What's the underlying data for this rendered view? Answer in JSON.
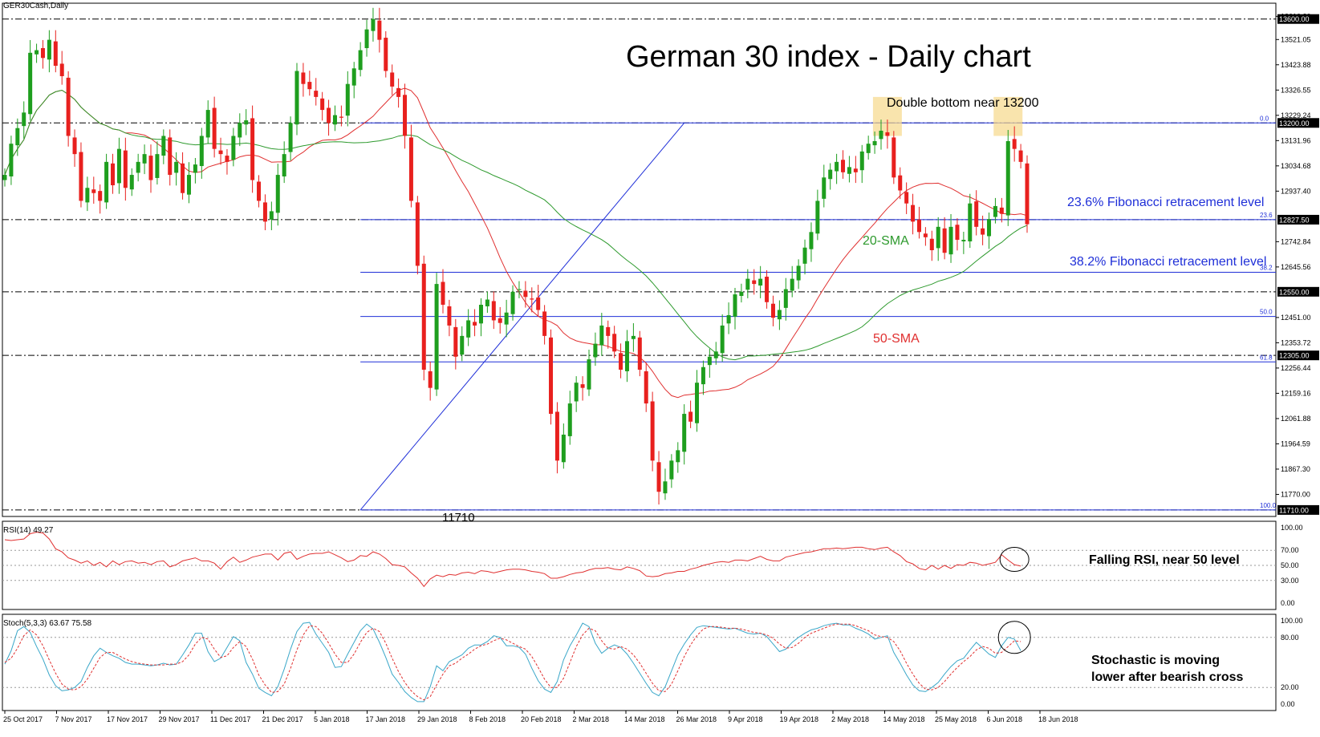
{
  "symbol_label": "GER30Cash,Daily",
  "title": "German 30 index - Daily chart",
  "annotations": {
    "double_bottom": "Double bottom near 13200",
    "fib_236": "23.6% Fibonacci retracement level",
    "fib_382": "38.2% Fibonacci retracement level",
    "sma20": "20-SMA",
    "sma50": "50-SMA",
    "low": "11710",
    "rsi_note": "Falling RSI, near 50 level",
    "stoch_note_line1": "Stochastic is moving",
    "stoch_note_line2": "lower after bearish cross"
  },
  "rsi_title": "RSI(14) 49.27",
  "stoch_title": "Stoch(5,3,3) 63.67 75.58",
  "colors": {
    "bull": "#1e9e1e",
    "bear": "#e8201e",
    "fib": "#1f2fd8",
    "sma20": "#2e9a2e",
    "sma50": "#e03030",
    "stoch_main": "#3aa7c9",
    "stoch_signal": "#e03030",
    "rsi": "#e03030",
    "highlight": "#f6d98a"
  },
  "chart_data": [
    {
      "type": "candlestick",
      "name": "GER30Cash,Daily",
      "x_ticks": [
        "25 Oct 2017",
        "7 Nov 2017",
        "17 Nov 2017",
        "29 Nov 2017",
        "11 Dec 2017",
        "21 Dec 2017",
        "5 Jan 2018",
        "17 Jan 2018",
        "29 Jan 2018",
        "8 Feb 2018",
        "20 Feb 2018",
        "2 Mar 2018",
        "14 Mar 2018",
        "26 Mar 2018",
        "9 Apr 2018",
        "19 Apr 2018",
        "2 May 2018",
        "14 May 2018",
        "25 May 2018",
        "6 Jun 2018",
        "18 Jun 2018"
      ],
      "y_ticks": [
        "13610.30",
        "13521.05",
        "13423.88",
        "13326.55",
        "13229.24",
        "13131.96",
        "13034.68",
        "12937.40",
        "12742.84",
        "12645.56",
        "12451.00",
        "12353.72",
        "12256.44",
        "12159.16",
        "12061.88",
        "11964.59",
        "11867.30",
        "11770.00"
      ],
      "ylim": [
        11685,
        13630
      ],
      "levels": [
        {
          "label": "13600.00",
          "value": 13600
        },
        {
          "label": "13200.00",
          "value": 13200
        },
        {
          "label": "12827.50",
          "value": 12827.5
        },
        {
          "label": "12550.00",
          "value": 12550
        },
        {
          "label": "12305.00",
          "value": 12305
        },
        {
          "label": "11710.00",
          "value": 11710
        }
      ],
      "fibonacci": [
        {
          "label": "0.0",
          "value": 13200
        },
        {
          "label": "23.6",
          "value": 12827.5
        },
        {
          "label": "38.2",
          "value": 12625
        },
        {
          "label": "50.0",
          "value": 12455
        },
        {
          "label": "61.8",
          "value": 12280
        },
        {
          "label": "100.0",
          "value": 11710
        }
      ],
      "close": [
        13000,
        13120,
        13180,
        13240,
        13470,
        13480,
        13450,
        13520,
        13420,
        13380,
        13150,
        13080,
        12900,
        12950,
        12930,
        12900,
        13050,
        12960,
        13100,
        12950,
        13000,
        13050,
        13080,
        12980,
        13080,
        13150,
        13000,
        13050,
        12930,
        13000,
        13040,
        13150,
        13250,
        13100,
        13080,
        13050,
        13150,
        13200,
        13210,
        12980,
        12900,
        12820,
        12860,
        13000,
        13080,
        13200,
        13400,
        13350,
        13330,
        13300,
        13250,
        13200,
        13230,
        13220,
        13350,
        13410,
        13480,
        13560,
        13600,
        13520,
        13400,
        13340,
        13300,
        13150,
        12900,
        12650,
        12250,
        12180,
        12580,
        12500,
        12420,
        12300,
        12380,
        12440,
        12420,
        12500,
        12520,
        12440,
        12430,
        12470,
        12550,
        12560,
        12530,
        12520,
        12480,
        12380,
        12080,
        11900,
        12000,
        12120,
        12200,
        12180,
        12290,
        12350,
        12420,
        12380,
        12320,
        12250,
        12360,
        12380,
        12250,
        12120,
        11900,
        11780,
        11820,
        11900,
        11940,
        12080,
        12050,
        12200,
        12260,
        12300,
        12320,
        12420,
        12460,
        12540,
        12550,
        12600,
        12580,
        12600,
        12510,
        12450,
        12480,
        12560,
        12600,
        12650,
        12720,
        12780,
        12900,
        12990,
        13020,
        13050,
        13010,
        13030,
        13010,
        13090,
        13120,
        13130,
        13170,
        13150,
        12990,
        12940,
        12890,
        12820,
        12780,
        12760,
        12710,
        12800,
        12700,
        12800,
        12750,
        12750,
        12890,
        12800,
        12770,
        12830,
        12880,
        12850,
        13130,
        13100,
        13050,
        12810
      ]
    },
    {
      "type": "line",
      "name": "RSI(14)",
      "y_ticks": [
        "100.00",
        "70.00",
        "50.00",
        "30.00",
        "0.00"
      ],
      "ylim": [
        0,
        100
      ],
      "levels": [
        70,
        50,
        30
      ],
      "series": [
        {
          "name": "RSI(14)",
          "values": [
            84,
            83,
            84,
            85,
            92,
            94,
            93,
            85,
            72,
            68,
            60,
            57,
            53,
            56,
            50,
            54,
            48,
            56,
            51,
            55,
            56,
            53,
            54,
            51,
            55,
            56,
            48,
            51,
            56,
            58,
            60,
            56,
            56,
            53,
            45,
            55,
            61,
            54,
            57,
            61,
            63,
            65,
            65,
            57,
            66,
            68,
            58,
            62,
            65,
            66,
            66,
            68,
            64,
            60,
            55,
            57,
            63,
            62,
            68,
            65,
            59,
            51,
            50,
            48,
            40,
            33,
            22,
            32,
            37,
            35,
            38,
            37,
            40,
            41,
            39,
            43,
            42,
            40,
            42,
            44,
            45,
            45,
            44,
            42,
            41,
            39,
            33,
            33,
            35,
            38,
            40,
            41,
            44,
            46,
            46,
            47,
            45,
            44,
            48,
            46,
            43,
            36,
            35,
            36,
            39,
            40,
            42,
            42,
            45,
            47,
            50,
            52,
            54,
            55,
            54,
            57,
            57,
            56,
            59,
            62,
            58,
            56,
            56,
            61,
            63,
            65,
            67,
            68,
            70,
            72,
            72,
            73,
            72,
            73,
            74,
            74,
            72,
            71,
            73,
            74,
            68,
            63,
            55,
            52,
            46,
            44,
            50,
            45,
            50,
            46,
            51,
            50,
            54,
            53,
            50,
            52,
            54,
            64,
            57,
            51,
            49
          ]
        }
      ]
    },
    {
      "type": "line",
      "name": "Stoch(5,3,3)",
      "y_ticks": [
        "100.00",
        "80.00",
        "20.00",
        "0.00"
      ],
      "ylim": [
        0,
        100
      ],
      "levels": [
        80,
        20
      ],
      "series": [
        {
          "name": "Stoch main",
          "values": [
            48,
            64,
            88,
            93,
            86,
            69,
            54,
            35,
            22,
            16,
            17,
            20,
            27,
            44,
            58,
            67,
            62,
            58,
            55,
            50,
            48,
            48,
            47,
            46,
            47,
            49,
            47,
            48,
            59,
            71,
            85,
            85,
            63,
            51,
            55,
            68,
            81,
            76,
            50,
            36,
            19,
            14,
            10,
            21,
            42,
            66,
            87,
            97,
            98,
            84,
            73,
            62,
            44,
            45,
            60,
            74,
            88,
            96,
            90,
            74,
            56,
            36,
            26,
            15,
            8,
            3,
            3,
            21,
            46,
            40,
            51,
            55,
            59,
            67,
            71,
            71,
            75,
            82,
            80,
            70,
            70,
            68,
            60,
            43,
            28,
            18,
            14,
            27,
            53,
            70,
            83,
            97,
            93,
            73,
            61,
            67,
            71,
            68,
            60,
            49,
            37,
            25,
            14,
            10,
            21,
            40,
            59,
            72,
            83,
            92,
            94,
            93,
            92,
            91,
            90,
            91,
            88,
            85,
            84,
            85,
            81,
            72,
            63,
            66,
            74,
            80,
            85,
            89,
            91,
            94,
            96,
            97,
            95,
            95,
            91,
            88,
            84,
            78,
            80,
            82,
            62,
            49,
            35,
            23,
            16,
            15,
            20,
            26,
            36,
            45,
            52,
            55,
            65,
            74,
            67,
            60,
            56,
            70,
            80,
            78,
            64
          ]
        },
        {
          "name": "Stoch signal",
          "values": [
            50,
            55,
            67,
            82,
            89,
            83,
            70,
            53,
            37,
            24,
            18,
            17,
            21,
            30,
            43,
            56,
            62,
            62,
            58,
            54,
            51,
            49,
            48,
            47,
            47,
            47,
            48,
            48,
            51,
            59,
            72,
            80,
            78,
            66,
            56,
            58,
            68,
            75,
            69,
            54,
            35,
            23,
            14,
            15,
            24,
            43,
            65,
            83,
            94,
            93,
            85,
            73,
            60,
            50,
            50,
            60,
            74,
            86,
            91,
            87,
            73,
            55,
            39,
            26,
            16,
            9,
            5,
            9,
            23,
            36,
            46,
            49,
            55,
            60,
            66,
            70,
            72,
            76,
            79,
            77,
            73,
            69,
            66,
            57,
            44,
            30,
            20,
            20,
            31,
            50,
            69,
            83,
            91,
            88,
            76,
            67,
            66,
            69,
            66,
            59,
            49,
            37,
            25,
            16,
            15,
            24,
            40,
            57,
            71,
            82,
            90,
            93,
            93,
            92,
            91,
            91,
            90,
            88,
            86,
            85,
            83,
            79,
            72,
            67,
            68,
            73,
            80,
            85,
            88,
            91,
            94,
            96,
            96,
            96,
            94,
            91,
            88,
            83,
            81,
            80,
            75,
            64,
            49,
            36,
            25,
            18,
            17,
            20,
            27,
            36,
            44,
            51,
            57,
            65,
            69,
            67,
            61,
            62,
            69,
            76,
            75
          ]
        }
      ]
    }
  ]
}
